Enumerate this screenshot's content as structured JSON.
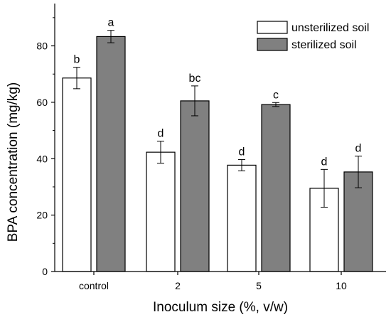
{
  "chart_data": {
    "type": "bar",
    "xlabel": "Inoculum size (%, v/w)",
    "ylabel": "BPA concentration (mg/kg)",
    "ylim": [
      0,
      95
    ],
    "yticks": [
      0,
      20,
      40,
      60,
      80
    ],
    "categories": [
      "control",
      "2",
      "5",
      "10"
    ],
    "series": [
      {
        "name": "unsterilized soil",
        "color": "#ffffff",
        "values": [
          68.6,
          42.3,
          37.7,
          29.5
        ],
        "errors": [
          3.8,
          3.9,
          2.0,
          6.7
        ],
        "labels": [
          "b",
          "d",
          "d",
          "d"
        ]
      },
      {
        "name": "sterilized soil",
        "color": "#808080",
        "values": [
          83.3,
          60.5,
          59.2,
          35.3
        ],
        "errors": [
          2.2,
          5.3,
          0.7,
          5.6
        ],
        "labels": [
          "a",
          "bc",
          "c",
          "d"
        ]
      }
    ],
    "legend": "top-right",
    "grid": false
  }
}
